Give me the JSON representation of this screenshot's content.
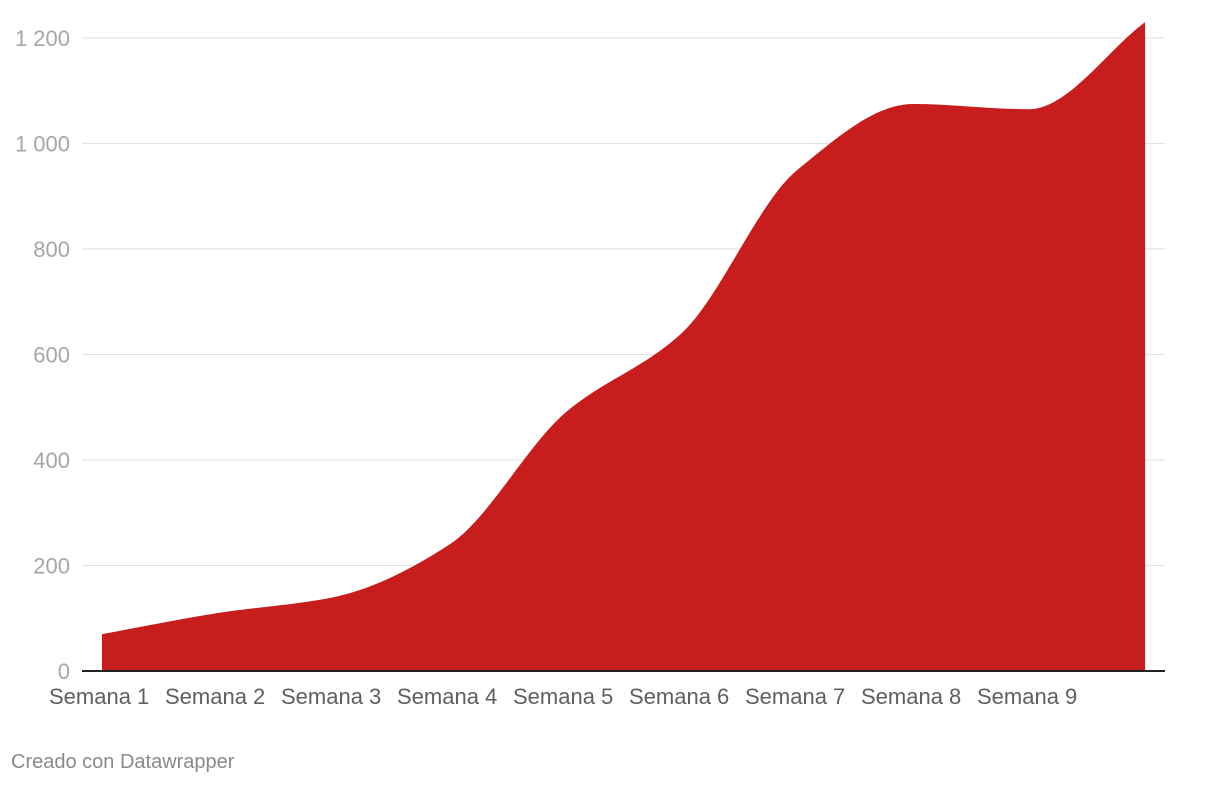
{
  "credit": "Creado con Datawrapper",
  "chart_data": {
    "type": "area",
    "title": "",
    "xlabel": "",
    "ylabel": "",
    "fill_color": "#c71d1d",
    "grid": true,
    "categories": [
      "Semana 1",
      "Semana 2",
      "Semana 3",
      "Semana 4",
      "Semana 5",
      "Semana 6",
      "Semana 7",
      "Semana 8",
      "Semana 9",
      ""
    ],
    "series": [
      {
        "values": [
          70,
          110,
          140,
          240,
          490,
          640,
          950,
          1075,
          1065,
          1230
        ]
      }
    ],
    "ylim": [
      0,
      1200
    ],
    "yticks": [
      0,
      200,
      400,
      600,
      800,
      1000,
      1200
    ],
    "ytick_labels": [
      "0",
      "200",
      "400",
      "600",
      "800",
      "1 000",
      "1 200"
    ]
  }
}
